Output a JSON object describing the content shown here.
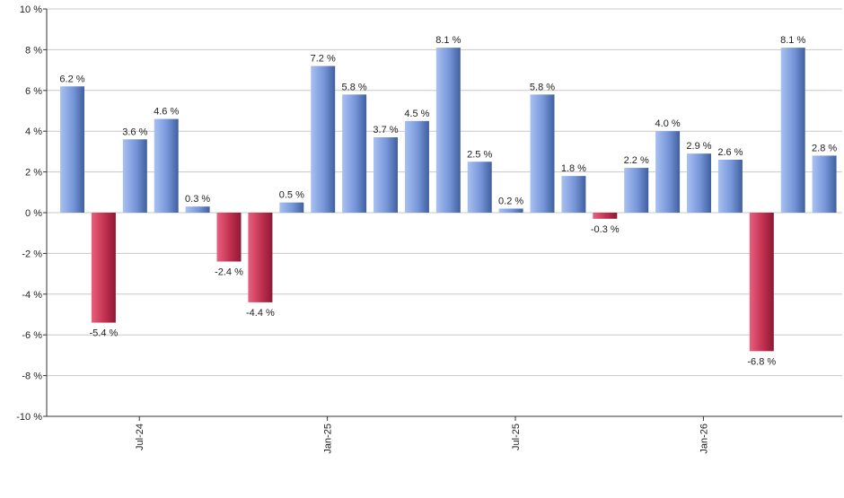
{
  "chart_data": {
    "type": "bar",
    "values": [
      6.2,
      -5.4,
      3.6,
      4.6,
      0.3,
      -2.4,
      -4.4,
      0.5,
      7.2,
      5.8,
      3.7,
      4.5,
      8.1,
      2.5,
      0.2,
      5.8,
      1.8,
      -0.3,
      2.2,
      4.0,
      2.9,
      2.6,
      -6.8,
      8.1,
      2.8
    ],
    "data_labels": [
      "6.2 %",
      "-5.4 %",
      "3.6 %",
      "4.6 %",
      "0.3 %",
      "-2.4 %",
      "-4.4 %",
      "0.5 %",
      "7.2 %",
      "5.8 %",
      "3.7 %",
      "4.5 %",
      "8.1 %",
      "2.5 %",
      "0.2 %",
      "5.8 %",
      "1.8 %",
      "-0.3 %",
      "2.2 %",
      "4.0 %",
      "2.9 %",
      "2.6 %",
      "-6.8 %",
      "8.1 %",
      "2.8 %"
    ],
    "ylim": [
      -10,
      10
    ],
    "y_ticks": [
      {
        "value": 10,
        "label": "10 %"
      },
      {
        "value": 8,
        "label": "8 %"
      },
      {
        "value": 6,
        "label": "6 %"
      },
      {
        "value": 4,
        "label": "4 %"
      },
      {
        "value": 2,
        "label": "2 %"
      },
      {
        "value": 0,
        "label": "0 %"
      },
      {
        "value": -2,
        "label": "-2 %"
      },
      {
        "value": -4,
        "label": "-4 %"
      },
      {
        "value": -6,
        "label": "-6 %"
      },
      {
        "value": -8,
        "label": "-8 %"
      },
      {
        "value": -10,
        "label": "-10 %"
      }
    ],
    "x_ticks": [
      {
        "index": 2.5,
        "label": "Jul-24"
      },
      {
        "index": 8.5,
        "label": "Jan-25"
      },
      {
        "index": 14.5,
        "label": "Jul-25"
      },
      {
        "index": 20.5,
        "label": "Jan-26"
      }
    ],
    "grid": true,
    "colors": {
      "positive_light": "#a9c1f2",
      "positive_dark": "#3f5f9f",
      "negative_light": "#e8607e",
      "negative_dark": "#8c1a34",
      "grid": "#c8c8c8",
      "axis": "#333333"
    }
  }
}
